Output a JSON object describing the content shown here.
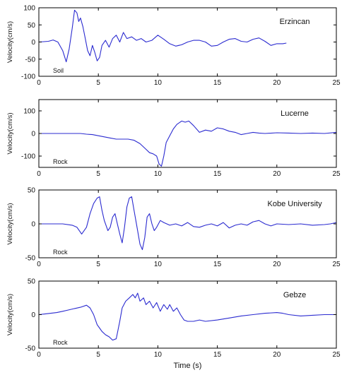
{
  "x_axis_label": "Time (s)",
  "colors": {
    "trace": "#2b2bd0",
    "axes": "#000000"
  },
  "chart_data": [
    {
      "type": "line",
      "station": "Erzincan",
      "site": "Soil",
      "ylabel": "Velocity(cm/s)",
      "xlim": [
        0,
        25
      ],
      "ylim": [
        -100,
        100
      ],
      "xticks": [
        0,
        5,
        10,
        15,
        20,
        25
      ],
      "yticks": [
        -100,
        -50,
        0,
        50,
        100
      ],
      "series": [
        {
          "x": [
            0,
            0.8,
            1.2,
            1.6,
            2.0,
            2.3,
            2.55,
            2.8,
            3.0,
            3.2,
            3.35,
            3.5,
            3.7,
            3.9,
            4.1,
            4.3,
            4.5,
            4.7,
            4.9,
            5.1,
            5.3,
            5.6,
            5.9,
            6.2,
            6.5,
            6.8,
            7.1,
            7.4,
            7.8,
            8.2,
            8.6,
            9.0,
            9.5,
            10.0,
            10.5,
            11.0,
            11.5,
            12.0,
            12.5,
            13.0,
            13.5,
            14.0,
            14.5,
            15.0,
            15.5,
            16.0,
            16.5,
            17.0,
            17.5,
            18.0,
            18.5,
            19.0,
            19.5,
            20.0,
            20.5,
            20.8
          ],
          "y": [
            0,
            2,
            6,
            0,
            -25,
            -58,
            -20,
            40,
            93,
            85,
            60,
            70,
            45,
            10,
            -25,
            -40,
            -10,
            -30,
            -55,
            -45,
            -10,
            5,
            -15,
            10,
            20,
            0,
            28,
            10,
            15,
            5,
            10,
            0,
            5,
            20,
            8,
            -5,
            -12,
            -8,
            0,
            5,
            5,
            0,
            -12,
            -10,
            0,
            8,
            10,
            2,
            0,
            8,
            12,
            2,
            -10,
            -5,
            -5,
            -3
          ]
        }
      ]
    },
    {
      "type": "line",
      "station": "Lucerne",
      "site": "Rock",
      "ylabel": "Velocity(cm/s)",
      "xlim": [
        0,
        25
      ],
      "ylim": [
        -150,
        150
      ],
      "xticks": [
        0,
        5,
        10,
        15,
        20,
        25
      ],
      "yticks": [
        -100,
        0,
        100
      ],
      "series": [
        {
          "x": [
            0,
            1,
            2,
            3,
            3.5,
            4,
            4.5,
            5,
            5.5,
            6,
            6.5,
            7,
            7.5,
            8,
            8.5,
            9,
            9.3,
            9.6,
            9.9,
            10.1,
            10.3,
            10.5,
            10.7,
            11,
            11.3,
            11.6,
            12,
            12.3,
            12.6,
            13,
            13.5,
            14,
            14.5,
            15,
            15.5,
            16,
            16.5,
            17,
            17.5,
            18,
            18.5,
            19,
            20,
            21,
            22,
            23,
            24,
            25
          ],
          "y": [
            0,
            0,
            0,
            0,
            0,
            -3,
            -5,
            -10,
            -15,
            -20,
            -25,
            -25,
            -25,
            -30,
            -45,
            -70,
            -85,
            -90,
            -100,
            -135,
            -145,
            -100,
            -40,
            -10,
            20,
            40,
            55,
            50,
            55,
            35,
            5,
            15,
            10,
            25,
            20,
            10,
            5,
            -5,
            0,
            5,
            2,
            0,
            3,
            2,
            0,
            2,
            0,
            5
          ]
        }
      ]
    },
    {
      "type": "line",
      "station": "Kobe University",
      "site": "Rock",
      "ylabel": "Velocity(cm/s)",
      "xlim": [
        0,
        25
      ],
      "ylim": [
        -50,
        50
      ],
      "xticks": [
        0,
        5,
        10,
        15,
        20,
        25
      ],
      "yticks": [
        -50,
        0,
        50
      ],
      "series": [
        {
          "x": [
            0,
            1,
            2,
            2.8,
            3.2,
            3.6,
            4.0,
            4.3,
            4.6,
            4.9,
            5.1,
            5.3,
            5.5,
            5.8,
            6.0,
            6.2,
            6.4,
            6.6,
            6.8,
            7.0,
            7.2,
            7.4,
            7.6,
            7.8,
            8.0,
            8.2,
            8.5,
            8.7,
            8.9,
            9.1,
            9.3,
            9.5,
            9.7,
            9.9,
            10.2,
            10.5,
            11,
            11.5,
            12,
            12.5,
            13,
            13.5,
            14,
            14.5,
            15,
            15.5,
            16,
            16.5,
            17,
            17.5,
            18,
            18.5,
            19,
            19.5,
            20,
            21,
            22,
            23,
            24,
            24.5,
            25
          ],
          "y": [
            0,
            0,
            0,
            -2,
            -5,
            -15,
            -5,
            15,
            30,
            38,
            40,
            20,
            5,
            -10,
            -5,
            10,
            15,
            0,
            -15,
            -28,
            -5,
            25,
            38,
            40,
            20,
            0,
            -30,
            -38,
            -20,
            10,
            15,
            0,
            -10,
            -5,
            5,
            2,
            -2,
            0,
            -3,
            2,
            -4,
            -5,
            -2,
            0,
            -3,
            2,
            -6,
            -2,
            0,
            -2,
            3,
            5,
            0,
            -3,
            0,
            -1,
            0,
            -2,
            -1,
            0,
            2
          ]
        }
      ]
    },
    {
      "type": "line",
      "station": "Gebze",
      "site": "Rock",
      "ylabel": "Velocity(cm/s)",
      "xlim": [
        0,
        25
      ],
      "ylim": [
        -50,
        50
      ],
      "xticks": [
        0,
        5,
        10,
        15,
        20,
        25
      ],
      "yticks": [
        -50,
        0,
        50
      ],
      "series": [
        {
          "x": [
            0,
            0.5,
            1,
            1.5,
            2,
            2.5,
            3,
            3.5,
            4.0,
            4.3,
            4.6,
            4.9,
            5.1,
            5.3,
            5.6,
            5.9,
            6.2,
            6.5,
            6.8,
            7.0,
            7.3,
            7.6,
            7.9,
            8.1,
            8.3,
            8.5,
            8.8,
            9.0,
            9.3,
            9.6,
            9.9,
            10.2,
            10.5,
            10.8,
            11.0,
            11.3,
            11.6,
            11.9,
            12.2,
            12.5,
            13,
            13.5,
            14,
            15,
            16,
            17,
            18,
            19,
            20,
            20.5,
            21,
            22,
            23,
            24,
            25
          ],
          "y": [
            0,
            1,
            2,
            3,
            5,
            7,
            9,
            11,
            14,
            10,
            0,
            -15,
            -20,
            -25,
            -30,
            -33,
            -38,
            -36,
            -10,
            10,
            20,
            25,
            30,
            25,
            32,
            20,
            25,
            15,
            20,
            10,
            18,
            5,
            15,
            8,
            15,
            5,
            10,
            0,
            -8,
            -10,
            -10,
            -8,
            -10,
            -8,
            -5,
            -2,
            0,
            2,
            3,
            2,
            0,
            -2,
            -1,
            0,
            0
          ]
        }
      ]
    }
  ]
}
